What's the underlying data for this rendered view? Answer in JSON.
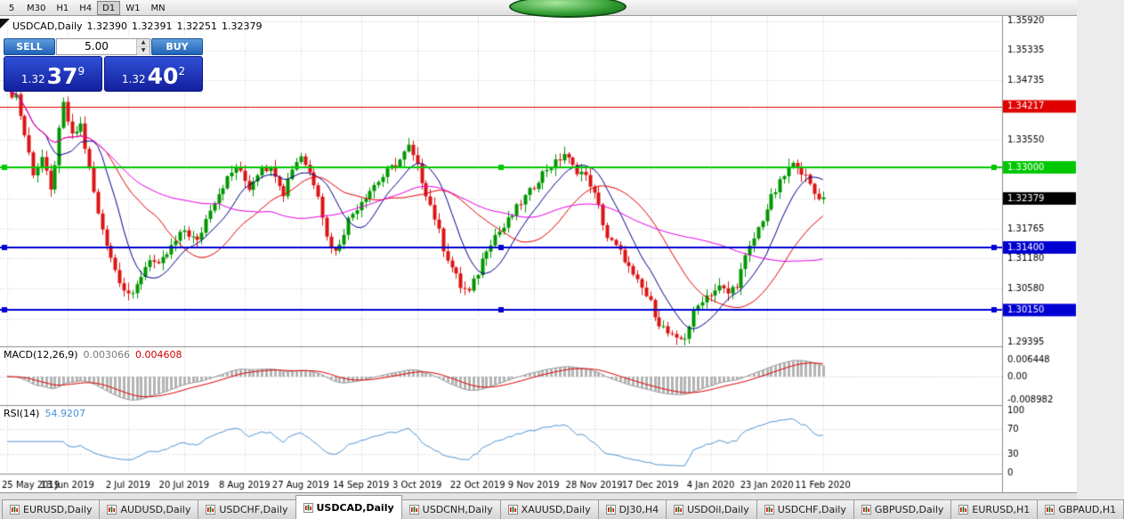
{
  "toolbar": {
    "timeframes": [
      "5",
      "M30",
      "H1",
      "H4",
      "D1",
      "W1",
      "MN"
    ],
    "active_timeframe": "D1"
  },
  "chart_header": {
    "symbol_period": "USDCAD,Daily",
    "ohlc": {
      "open": "1.32390",
      "high": "1.32391",
      "low": "1.32251",
      "close": "1.32379"
    }
  },
  "trade_panel": {
    "sell_label": "SELL",
    "buy_label": "BUY",
    "volume": "5.00",
    "sell_price": {
      "prefix": "1.32",
      "main": "37",
      "sup": "9"
    },
    "buy_price": {
      "prefix": "1.32",
      "main": "40",
      "sup": "2"
    }
  },
  "chart_data": {
    "type": "candlestick",
    "symbol": "USDCAD",
    "timeframe": "Daily",
    "current_price": 1.32379,
    "num_candles": 190,
    "up_color": "#009600",
    "down_color": "#dc1414",
    "close_anchors": [
      [
        0,
        1.345
      ],
      [
        2,
        1.3445
      ],
      [
        4,
        1.3365
      ],
      [
        6,
        1.329
      ],
      [
        8,
        1.332
      ],
      [
        10,
        1.325
      ],
      [
        12,
        1.337
      ],
      [
        13,
        1.3425
      ],
      [
        15,
        1.336
      ],
      [
        17,
        1.3385
      ],
      [
        19,
        1.3295
      ],
      [
        21,
        1.3205
      ],
      [
        23,
        1.315
      ],
      [
        25,
        1.3095
      ],
      [
        27,
        1.306
      ],
      [
        29,
        1.304
      ],
      [
        31,
        1.3085
      ],
      [
        33,
        1.312
      ],
      [
        35,
        1.31
      ],
      [
        38,
        1.314
      ],
      [
        41,
        1.3175
      ],
      [
        44,
        1.315
      ],
      [
        47,
        1.322
      ],
      [
        50,
        1.3265
      ],
      [
        53,
        1.33
      ],
      [
        56,
        1.326
      ],
      [
        59,
        1.3305
      ],
      [
        62,
        1.329
      ],
      [
        64,
        1.325
      ],
      [
        66,
        1.33
      ],
      [
        68,
        1.3325
      ],
      [
        70,
        1.329
      ],
      [
        72,
        1.325
      ],
      [
        74,
        1.316
      ],
      [
        76,
        1.313
      ],
      [
        79,
        1.3195
      ],
      [
        82,
        1.3235
      ],
      [
        85,
        1.3265
      ],
      [
        88,
        1.329
      ],
      [
        91,
        1.3315
      ],
      [
        93,
        1.334
      ],
      [
        95,
        1.33
      ],
      [
        97,
        1.325
      ],
      [
        99,
        1.32
      ],
      [
        101,
        1.314
      ],
      [
        103,
        1.31
      ],
      [
        105,
        1.3062
      ],
      [
        107,
        1.305
      ],
      [
        109,
        1.309
      ],
      [
        111,
        1.314
      ],
      [
        113,
        1.3165
      ],
      [
        115,
        1.318
      ],
      [
        117,
        1.3205
      ],
      [
        119,
        1.323
      ],
      [
        121,
        1.325
      ],
      [
        123,
        1.3278
      ],
      [
        125,
        1.3298
      ],
      [
        127,
        1.3308
      ],
      [
        129,
        1.3328
      ],
      [
        131,
        1.33
      ],
      [
        133,
        1.329
      ],
      [
        135,
        1.3268
      ],
      [
        137,
        1.322
      ],
      [
        139,
        1.316
      ],
      [
        141,
        1.314
      ],
      [
        143,
        1.3118
      ],
      [
        145,
        1.308
      ],
      [
        147,
        1.3058
      ],
      [
        149,
        1.3028
      ],
      [
        151,
        1.299
      ],
      [
        153,
        1.2968
      ],
      [
        155,
        1.2952
      ],
      [
        157,
        1.2962
      ],
      [
        159,
        1.3008
      ],
      [
        161,
        1.3038
      ],
      [
        163,
        1.305
      ],
      [
        165,
        1.306
      ],
      [
        167,
        1.3048
      ],
      [
        169,
        1.3068
      ],
      [
        171,
        1.3118
      ],
      [
        173,
        1.3158
      ],
      [
        175,
        1.3198
      ],
      [
        177,
        1.3238
      ],
      [
        179,
        1.3268
      ],
      [
        181,
        1.3298
      ],
      [
        183,
        1.3308
      ],
      [
        185,
        1.3278
      ],
      [
        187,
        1.3248
      ],
      [
        189,
        1.3238
      ]
    ],
    "moving_averages": [
      {
        "period": 10,
        "color": "#00008b"
      },
      {
        "period": 24,
        "color": "#e60000"
      },
      {
        "period": 50,
        "color": "#e600e6"
      }
    ],
    "price_axis_labels": [
      {
        "text": "1.35920",
        "price": 1.3592
      },
      {
        "text": "1.35335",
        "price": 1.35335
      },
      {
        "text": "1.34735",
        "price": 1.34735
      },
      {
        "text": "1.33550",
        "price": 1.3355
      },
      {
        "text": "1.31765",
        "price": 1.31765
      },
      {
        "text": "1.31180",
        "price": 1.3118
      },
      {
        "text": "1.30580",
        "price": 1.3058
      },
      {
        "text": "1.29395",
        "price": 1.29395
      }
    ],
    "gridline_prices": [
      1.3592,
      1.35335,
      1.34735,
      1.3415,
      1.3355,
      1.32965,
      1.3238,
      1.31765,
      1.3118,
      1.3058,
      1.29985,
      1.29395
    ],
    "price_tags": [
      {
        "text": "1.34217",
        "price": 1.34217,
        "bg": "#e00000"
      },
      {
        "text": "1.33000",
        "price": 1.33,
        "bg": "#00c800"
      },
      {
        "text": "1.32379",
        "price": 1.32379,
        "bg": "#000000"
      },
      {
        "text": "1.31400",
        "price": 1.314,
        "bg": "#0000d2"
      },
      {
        "text": "1.30150",
        "price": 1.3015,
        "bg": "#0000d2"
      }
    ],
    "hlines": [
      {
        "price": 1.34217,
        "color": "#e00000",
        "width": 1,
        "handles": false
      },
      {
        "price": 1.33,
        "color": "#00c800",
        "width": 2,
        "handles": true
      },
      {
        "price": 1.314,
        "color": "#0000d2",
        "width": 2,
        "handles": true
      },
      {
        "price": 1.3015,
        "color": "#0000d2",
        "width": 2,
        "handles": true
      }
    ],
    "date_labels": [
      {
        "index": 0,
        "text": "25 May 2019"
      },
      {
        "index": 14,
        "text": "13 Jun 2019"
      },
      {
        "index": 28,
        "text": "2 Jul 2019"
      },
      {
        "index": 41,
        "text": "20 Jul 2019"
      },
      {
        "index": 55,
        "text": "8 Aug 2019"
      },
      {
        "index": 68,
        "text": "27 Aug 2019"
      },
      {
        "index": 82,
        "text": "14 Sep 2019"
      },
      {
        "index": 95,
        "text": "3 Oct 2019"
      },
      {
        "index": 109,
        "text": "22 Oct 2019"
      },
      {
        "index": 122,
        "text": "9 Nov 2019"
      },
      {
        "index": 136,
        "text": "28 Nov 2019"
      },
      {
        "index": 149,
        "text": "17 Dec 2019"
      },
      {
        "index": 163,
        "text": "4 Jan 2020"
      },
      {
        "index": 176,
        "text": "23 Jan 2020"
      },
      {
        "index": 189,
        "text": "11 Feb 2020"
      }
    ],
    "indicators": {
      "macd": {
        "fast": 12,
        "slow": 26,
        "signal": 9
      },
      "rsi": {
        "period": 14
      }
    }
  },
  "macd_panel": {
    "label": "MACD(12,26,9)",
    "main_value": "0.003066",
    "signal_value": "0.004608",
    "axis_labels": [
      {
        "text": "0.006448",
        "value": 0.006448
      },
      {
        "text": "0.00",
        "value": 0
      },
      {
        "text": "-0.008982",
        "value": -0.008982
      }
    ]
  },
  "rsi_panel": {
    "label": "RSI(14)",
    "value": "54.9207",
    "levels": [
      70,
      30
    ],
    "axis_labels": [
      {
        "text": "100",
        "value": 100
      },
      {
        "text": "70",
        "value": 70
      },
      {
        "text": "30",
        "value": 30
      },
      {
        "text": "0",
        "value": 0
      }
    ]
  },
  "bottom_tabs": {
    "active": "USDCAD,Daily",
    "tabs": [
      "EURUSD,Daily",
      "AUDUSD,Daily",
      "USDCHF,Daily",
      "USDCAD,Daily",
      "USDCNH,Daily",
      "XAUUSD,Daily",
      "DJ30,H4",
      "USDOil,Daily",
      "USDCHF,Daily",
      "GBPUSD,Daily",
      "EURUSD,H1",
      "GBPAUD,H1"
    ]
  }
}
